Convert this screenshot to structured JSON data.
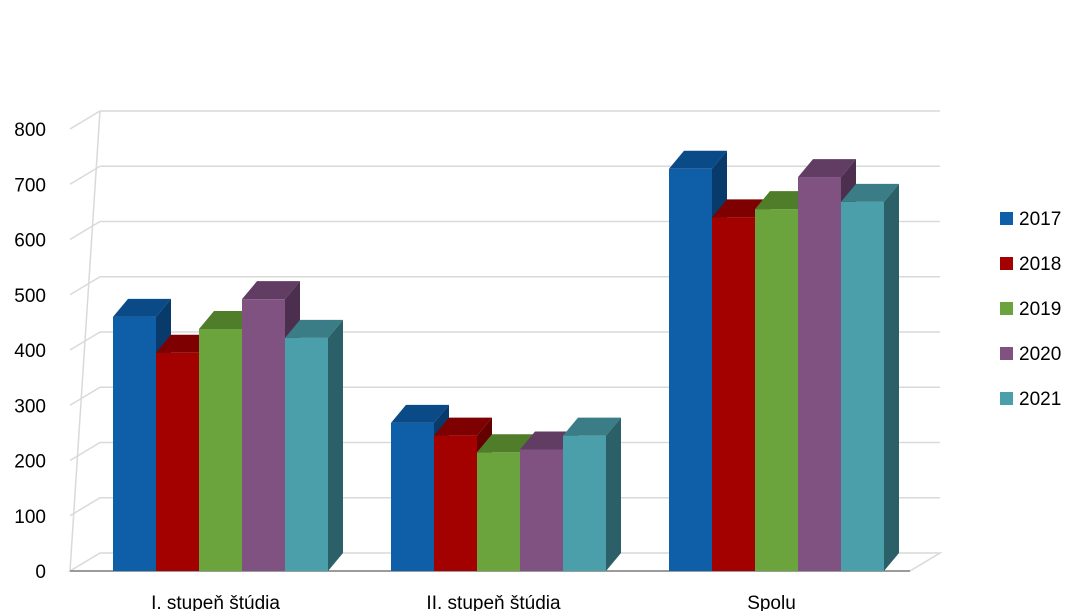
{
  "chart_data": {
    "type": "bar",
    "title": "",
    "xlabel": "",
    "ylabel": "",
    "ylim": [
      0,
      800
    ],
    "y_ticks": [
      "0",
      "100",
      "200",
      "300",
      "400",
      "500",
      "600",
      "700",
      "800"
    ],
    "categories": [
      "I. stupeň štúdia",
      "II. stupeň štúdia",
      "Spolu"
    ],
    "series": [
      {
        "name": "2017",
        "color": "#0F5EA8",
        "top": "#0A4A86",
        "side": "#083B6B",
        "values": [
          460,
          268,
          728
        ]
      },
      {
        "name": "2018",
        "color": "#A30000",
        "top": "#7F0000",
        "side": "#650000",
        "values": [
          395,
          245,
          640
        ]
      },
      {
        "name": "2019",
        "color": "#6BA33D",
        "top": "#4F7D2A",
        "side": "#3E6321",
        "values": [
          438,
          215,
          655
        ]
      },
      {
        "name": "2020",
        "color": "#7F5282",
        "top": "#613D64",
        "side": "#4C2F4E",
        "values": [
          492,
          220,
          713
        ]
      },
      {
        "name": "2021",
        "color": "#4B9FAA",
        "top": "#3A7D86",
        "side": "#2C6068",
        "values": [
          422,
          245,
          668
        ]
      }
    ],
    "grid": true,
    "legend_position": "right"
  }
}
